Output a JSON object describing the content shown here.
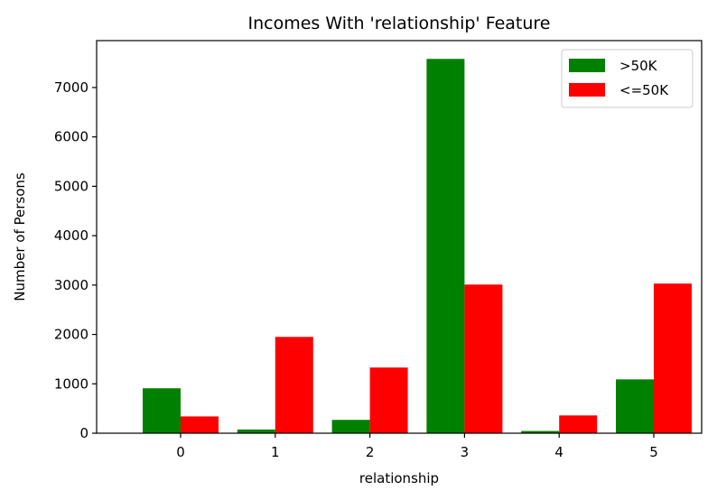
{
  "chart_data": {
    "type": "bar",
    "title": "Incomes With 'relationship' Feature",
    "xlabel": "relationship",
    "ylabel": "Number of Persons",
    "categories": [
      "0",
      "1",
      "2",
      "3",
      "4",
      "5"
    ],
    "series": [
      {
        "name": ">50K",
        "color": "#008000",
        "values": [
          910,
          75,
          270,
          7580,
          45,
          1090
        ]
      },
      {
        "name": "<=50K",
        "color": "#ff0000",
        "values": [
          340,
          1950,
          1330,
          3010,
          360,
          3030
        ]
      }
    ],
    "ylim": [
      0,
      7950
    ],
    "yticks": [
      0,
      1000,
      2000,
      3000,
      4000,
      5000,
      6000,
      7000
    ],
    "grid": false,
    "legend_position": "top-right"
  }
}
